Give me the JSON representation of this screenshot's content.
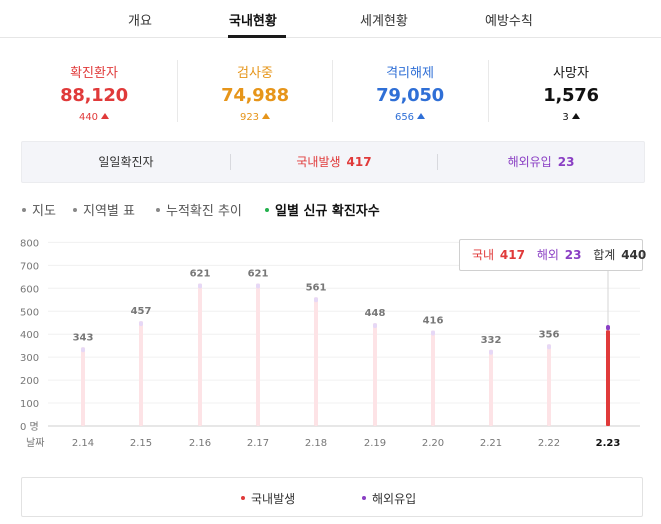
{
  "tabs": [
    {
      "label": "개요",
      "active": false
    },
    {
      "label": "국내현황",
      "active": true
    },
    {
      "label": "세계현황",
      "active": false
    },
    {
      "label": "예방수칙",
      "active": false
    }
  ],
  "stats": [
    {
      "label": "확진환자",
      "value": "88,120",
      "delta": "440",
      "color": "#e03a3a"
    },
    {
      "label": "검사중",
      "value": "74,988",
      "delta": "923",
      "color": "#e6951a"
    },
    {
      "label": "격리해제",
      "value": "79,050",
      "delta": "656",
      "color": "#2f6fd6"
    },
    {
      "label": "사망자",
      "value": "1,576",
      "delta": "3",
      "color": "#111111"
    }
  ],
  "daily": {
    "title": "일일확진자",
    "domestic_label": "국내발생",
    "domestic_value": "417",
    "overseas_label": "해외유입",
    "overseas_value": "23"
  },
  "subtabs": [
    {
      "label": "지도",
      "active": false
    },
    {
      "label": "지역별 표",
      "active": false
    },
    {
      "label": "누적확진 추이",
      "active": false
    },
    {
      "label": "일별 신규 확진자수",
      "active": true
    }
  ],
  "tooltip": {
    "domestic_label": "국내",
    "domestic_value": "417",
    "overseas_label": "해외",
    "overseas_value": "23",
    "total_label": "합계",
    "total_value": "440"
  },
  "legend": [
    {
      "label": "국내발생",
      "color": "#e03a3a"
    },
    {
      "label": "해외유입",
      "color": "#8a3fc4"
    }
  ],
  "colors": {
    "domestic": "#e03a3a",
    "overseas": "#8a3fc4",
    "bar_faded": "#fde3e6",
    "bar_top_faded": "#e6d8f6"
  },
  "chart_data": {
    "type": "bar",
    "x_axis_title": "날짜",
    "y_unit": "명",
    "ylim": [
      0,
      800
    ],
    "y_ticks": [
      0,
      100,
      200,
      300,
      400,
      500,
      600,
      700,
      800
    ],
    "categories": [
      "2.14",
      "2.15",
      "2.16",
      "2.17",
      "2.18",
      "2.19",
      "2.20",
      "2.21",
      "2.22",
      "2.23"
    ],
    "totals": [
      343,
      457,
      621,
      621,
      561,
      448,
      416,
      332,
      356,
      440
    ],
    "series": [
      {
        "name": "국내발생",
        "values": [
          null,
          null,
          null,
          null,
          null,
          null,
          null,
          null,
          null,
          417
        ]
      },
      {
        "name": "해외유입",
        "values": [
          null,
          null,
          null,
          null,
          null,
          null,
          null,
          null,
          null,
          23
        ]
      }
    ],
    "highlight_index": 9,
    "grid": true
  }
}
